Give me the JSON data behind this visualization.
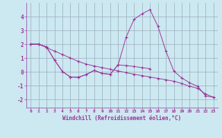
{
  "xlabel": "Windchill (Refroidissement éolien,°C)",
  "xlim": [
    -0.5,
    23.5
  ],
  "ylim": [
    -2.6,
    5.0
  ],
  "yticks": [
    -2,
    -1,
    0,
    1,
    2,
    3,
    4
  ],
  "xticks": [
    0,
    1,
    2,
    3,
    4,
    5,
    6,
    7,
    8,
    9,
    10,
    11,
    12,
    13,
    14,
    15,
    16,
    17,
    18,
    19,
    20,
    21,
    22,
    23
  ],
  "bg_color": "#cce8f0",
  "line_color": "#993399",
  "grid_color": "#99aabb",
  "line1_x": [
    0,
    1,
    2,
    3,
    4,
    5,
    6,
    7,
    8,
    9,
    10,
    11,
    12,
    13,
    14,
    15,
    16,
    17,
    18,
    19,
    20,
    21,
    22,
    23
  ],
  "line1_y": [
    2.0,
    2.0,
    1.8,
    0.85,
    0.02,
    -0.38,
    -0.4,
    -0.2,
    0.1,
    -0.12,
    -0.18,
    0.5,
    2.5,
    3.8,
    4.2,
    4.5,
    3.3,
    1.5,
    0.05,
    -0.45,
    -0.8,
    -1.05,
    -1.75,
    -1.85
  ],
  "line2_x": [
    0,
    1,
    2,
    3,
    4,
    5,
    6,
    7,
    8,
    9,
    10,
    11,
    12,
    13,
    14,
    15,
    16,
    17,
    18,
    19,
    20,
    21,
    22,
    23
  ],
  "line2_y": [
    2.0,
    2.0,
    1.75,
    1.5,
    1.25,
    1.0,
    0.75,
    0.55,
    0.42,
    0.3,
    0.18,
    0.06,
    -0.06,
    -0.18,
    -0.28,
    -0.38,
    -0.48,
    -0.58,
    -0.68,
    -0.85,
    -1.05,
    -1.2,
    -1.62,
    -1.85
  ],
  "line3_x": [
    0,
    1,
    2,
    3,
    4,
    5,
    6,
    7,
    8,
    9,
    10,
    11,
    12,
    13,
    14,
    15
  ],
  "line3_y": [
    2.0,
    2.0,
    1.8,
    0.85,
    0.02,
    -0.38,
    -0.4,
    -0.2,
    0.1,
    -0.12,
    -0.18,
    0.5,
    0.45,
    0.38,
    0.3,
    0.22
  ]
}
